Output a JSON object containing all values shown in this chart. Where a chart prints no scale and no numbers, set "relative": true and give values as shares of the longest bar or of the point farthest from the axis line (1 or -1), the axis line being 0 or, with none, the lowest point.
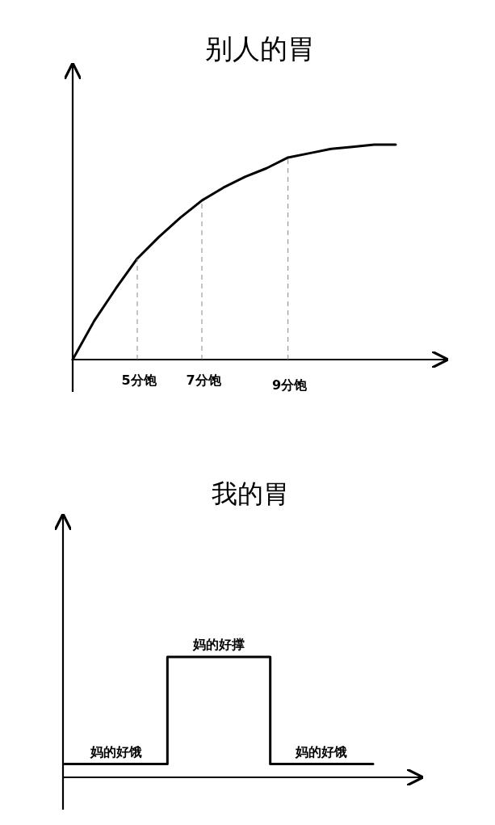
{
  "chart_data": [
    {
      "type": "line",
      "title": "别人的胃",
      "relative": true,
      "color": "#000000",
      "categories": [
        null,
        null,
        null,
        "5分饱",
        null,
        null,
        "7分饱",
        null,
        null,
        null,
        "9分饱",
        null,
        null,
        null,
        null,
        null
      ],
      "values": [
        0,
        0.18,
        0.33,
        0.47,
        0.57,
        0.66,
        0.74,
        0.8,
        0.85,
        0.89,
        0.94,
        0.96,
        0.98,
        0.99,
        1.0,
        1.0
      ],
      "ref_lines": [
        {
          "axis": "x",
          "value": "5分饱",
          "color": "#888888",
          "line_style": "dashed"
        },
        {
          "axis": "x",
          "value": "7分饱",
          "color": "#888888",
          "line_style": "dashed"
        },
        {
          "axis": "x",
          "value": "9分饱",
          "color": "#888888",
          "line_style": "dashed"
        }
      ]
    },
    {
      "type": "step",
      "title": "我的胃",
      "relative": true,
      "color": "#000000",
      "categories": [
        null,
        null,
        null,
        null
      ],
      "values": [
        0.11,
        1.0,
        0.11,
        0.11
      ],
      "annotations": [
        {
          "text": "妈的好饿",
          "y": 0.11
        },
        {
          "text": "妈的好撑",
          "y": 1.0
        },
        {
          "text": "妈的好饿",
          "y": 0.11
        }
      ]
    }
  ]
}
